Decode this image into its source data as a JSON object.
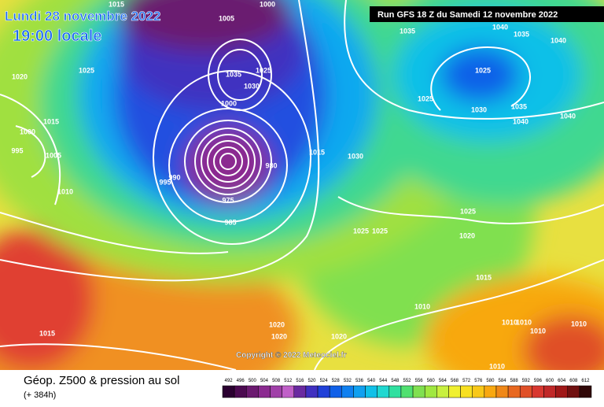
{
  "header": {
    "date": "Lundi 28 novembre 2022",
    "time": "19:00 locale",
    "run": "Run GFS 18 Z du Samedi 12 novembre 2022",
    "copyright": "Copyright © 2022 Meteociel.fr"
  },
  "legend": {
    "title": "Géop. Z500 & pression au sol",
    "subtitle": "(+ 384h)",
    "labels": [
      492,
      496,
      500,
      504,
      508,
      512,
      516,
      520,
      524,
      528,
      532,
      536,
      540,
      544,
      548,
      552,
      556,
      560,
      564,
      568,
      572,
      576,
      580,
      584,
      588,
      592,
      596,
      600,
      604,
      608,
      612
    ],
    "colors": [
      "#2a0030",
      "#4b0a50",
      "#6b1a70",
      "#8b2a90",
      "#a040a8",
      "#c060c8",
      "#6a2aa0",
      "#4030c0",
      "#2040d8",
      "#1060e8",
      "#1080f0",
      "#10a0f0",
      "#10c0e8",
      "#20d8d0",
      "#30e0a0",
      "#50e070",
      "#80e050",
      "#a0e840",
      "#c8f040",
      "#f0f030",
      "#f8e020",
      "#f8c818",
      "#f8a810",
      "#f08818",
      "#e86820",
      "#e05028",
      "#d83830",
      "#c02828",
      "#a01818",
      "#701010",
      "#300808"
    ]
  },
  "map_labels": [
    "1015",
    "1005",
    "1000",
    "1025",
    "1020",
    "1015",
    "1005",
    "995",
    "1000",
    "1010",
    "995",
    "990",
    "975",
    "985",
    "980",
    "1015",
    "1030",
    "1035",
    "1040",
    "1035",
    "1040",
    "1025",
    "1025",
    "1030",
    "1035",
    "1040",
    "1040",
    "1025",
    "1020",
    "1025",
    "1025",
    "1015",
    "1010",
    "1010",
    "1010",
    "1010",
    "1010",
    "1020",
    "1020",
    "1020",
    "1015",
    "1010",
    "1030",
    "1025",
    "1035",
    "1000"
  ]
}
